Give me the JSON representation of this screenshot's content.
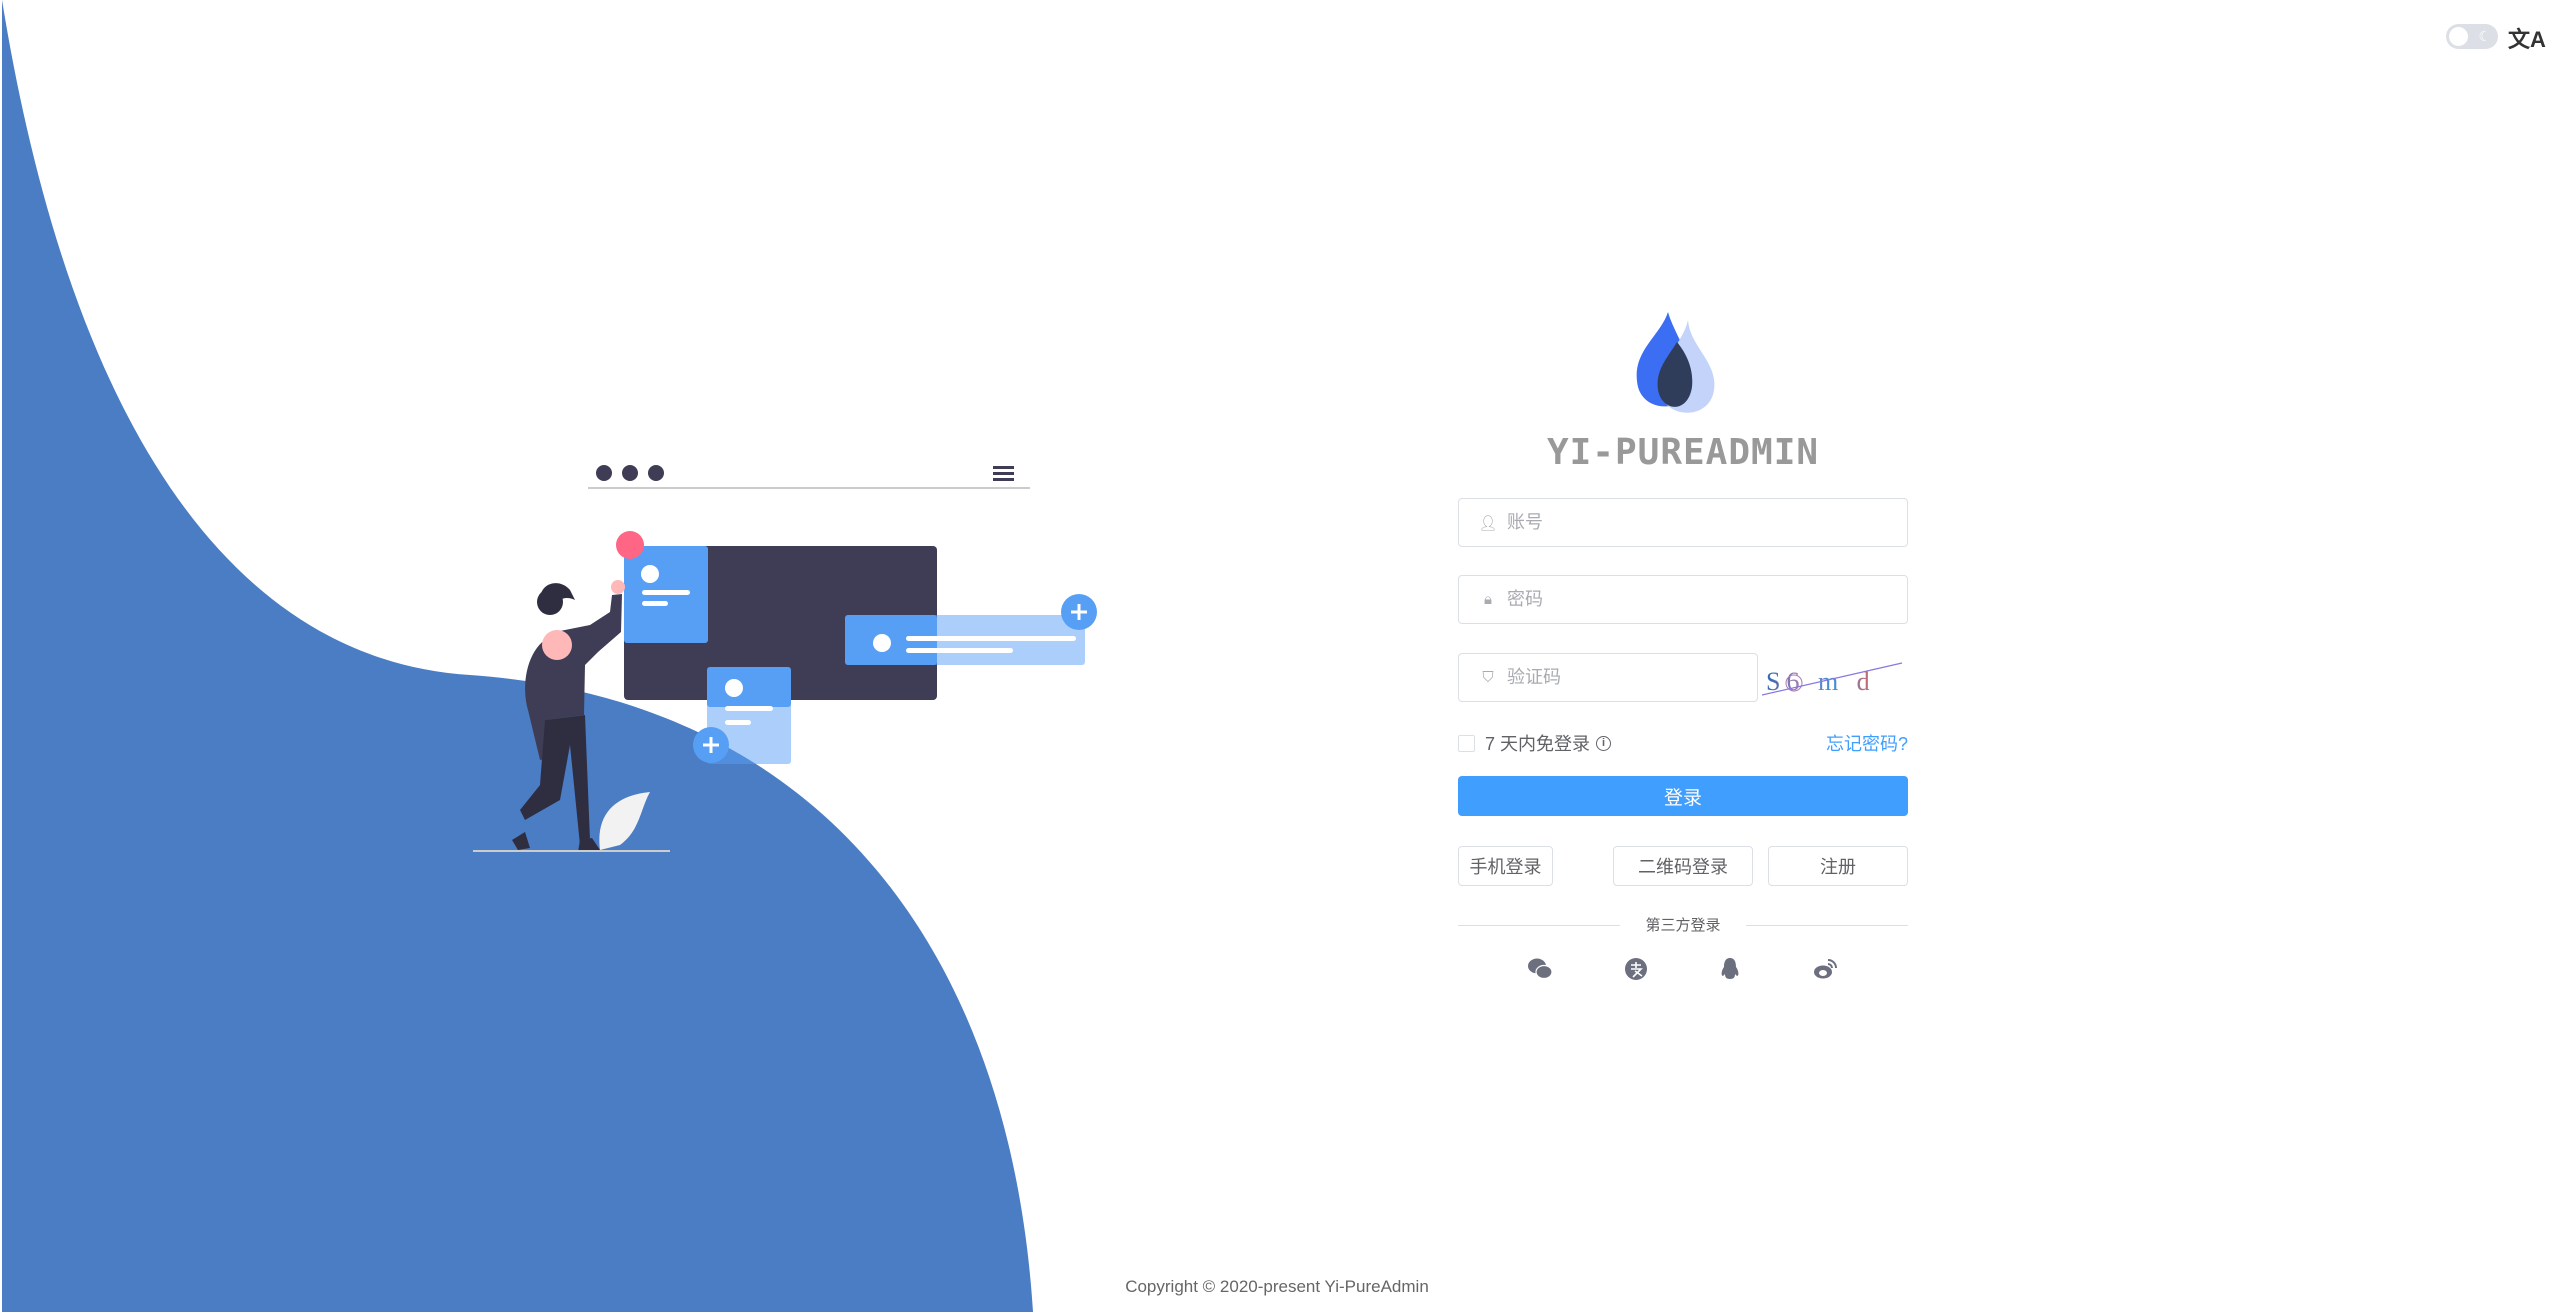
{
  "brand": {
    "title": "YI-PUREADMIN"
  },
  "topbar": {
    "theme_toggle": "dark-mode-toggle",
    "language_icon": "文A"
  },
  "form": {
    "username_placeholder": "账号",
    "username_value": "",
    "password_placeholder": "密码",
    "password_value": "",
    "captcha_placeholder": "验证码",
    "captcha_value": "",
    "captcha_image_text": "S6 m d",
    "remember_label": "7 天内免登录",
    "remember_checked": false,
    "forgot_link": "忘记密码?",
    "login_button": "登录",
    "phone_login": "手机登录",
    "qr_login": "二维码登录",
    "register": "注册",
    "third_party_label": "第三方登录",
    "social_icons": [
      "wechat-icon",
      "alipay-icon",
      "qq-icon",
      "weibo-icon"
    ]
  },
  "footer": {
    "copyright": "Copyright © 2020-present Yi-PureAdmin"
  },
  "colors": {
    "primary": "#409eff",
    "wave": "#4a7dc4",
    "illustration_dark": "#3f3d56",
    "illustration_blue": "#579ff5"
  }
}
